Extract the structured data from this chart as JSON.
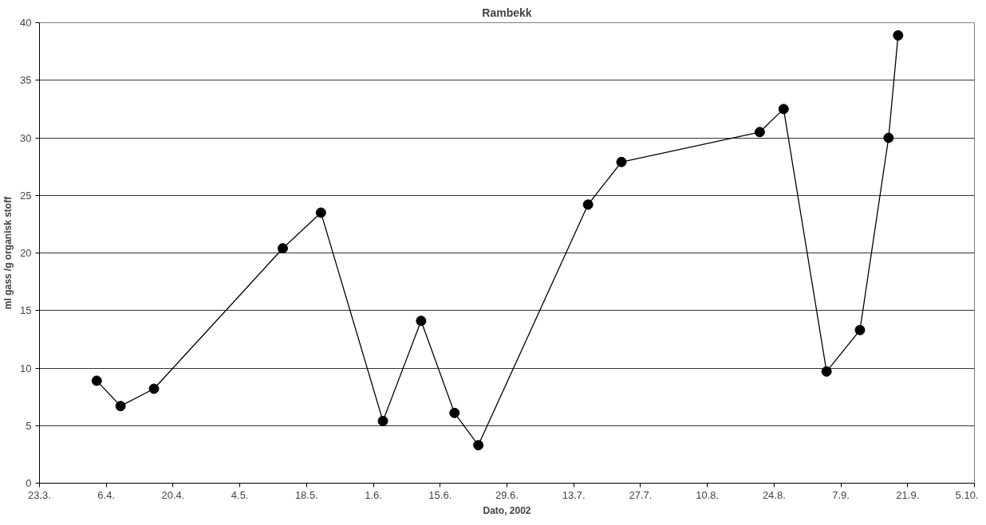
{
  "chart_data": {
    "type": "line",
    "title": "Rambekk",
    "xlabel": "Dato, 2002",
    "ylabel": "ml gass /g organisk stoff",
    "x": [
      "2002-04-04",
      "2002-04-09",
      "2002-04-16",
      "2002-05-13",
      "2002-05-21",
      "2002-06-03",
      "2002-06-11",
      "2002-06-18",
      "2002-06-23",
      "2002-07-16",
      "2002-07-23",
      "2002-08-21",
      "2002-08-26",
      "2002-09-04",
      "2002-09-11",
      "2002-09-17",
      "2002-09-19"
    ],
    "series": [
      {
        "color": "#000000",
        "values": [
          8.9,
          6.7,
          8.2,
          20.4,
          23.5,
          5.4,
          14.1,
          6.1,
          3.3,
          24.2,
          27.9,
          30.5,
          32.5,
          9.7,
          13.3,
          30.0,
          38.9
        ]
      }
    ],
    "xlim": [
      "2002-03-23",
      "2002-10-05"
    ],
    "xticks": [
      {
        "value": "2002-03-23",
        "label": "23.3."
      },
      {
        "value": "2002-04-06",
        "label": "6.4."
      },
      {
        "value": "2002-04-20",
        "label": "20.4."
      },
      {
        "value": "2002-05-04",
        "label": "4.5."
      },
      {
        "value": "2002-05-18",
        "label": "18.5."
      },
      {
        "value": "2002-06-01",
        "label": "1.6."
      },
      {
        "value": "2002-06-15",
        "label": "15.6."
      },
      {
        "value": "2002-06-29",
        "label": "29.6."
      },
      {
        "value": "2002-07-13",
        "label": "13.7."
      },
      {
        "value": "2002-07-27",
        "label": "27.7."
      },
      {
        "value": "2002-08-10",
        "label": "10.8."
      },
      {
        "value": "2002-08-24",
        "label": "24.8."
      },
      {
        "value": "2002-09-07",
        "label": "7.9."
      },
      {
        "value": "2002-09-21",
        "label": "21.9."
      },
      {
        "value": "2002-10-05",
        "label": "5.10."
      }
    ],
    "ylim": [
      0,
      40
    ],
    "yticks": [
      0,
      5,
      10,
      15,
      20,
      25,
      30,
      35,
      40
    ],
    "grid": "y",
    "marker": "circle",
    "line_style": "solid"
  }
}
